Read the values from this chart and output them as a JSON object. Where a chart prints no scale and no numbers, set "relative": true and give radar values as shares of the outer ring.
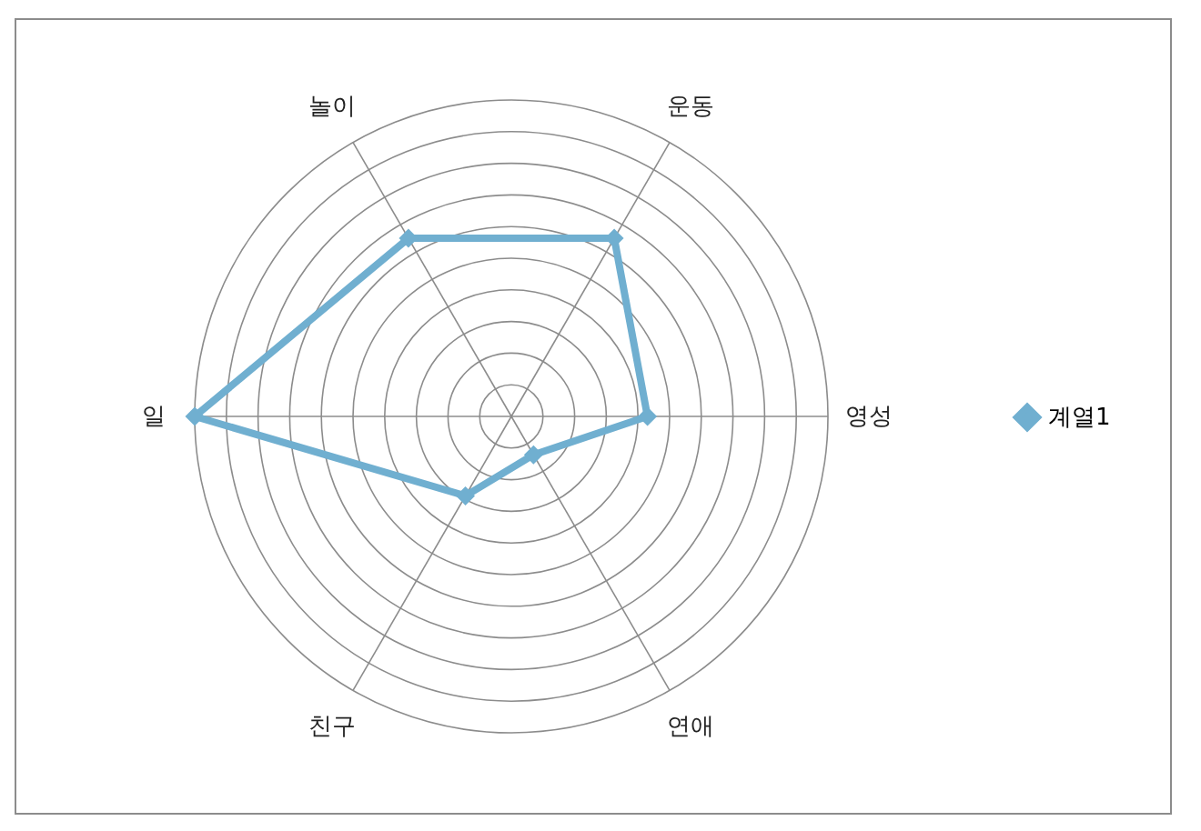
{
  "chart_data": {
    "type": "radar",
    "relative": true,
    "grid": true,
    "legend": "right",
    "marker": "diamond",
    "categories": [
      "운동",
      "영성",
      "연애",
      "친구",
      "일",
      "놀이"
    ],
    "series": [
      {
        "name": "계열1",
        "color": "#70afd0",
        "values": [
          0.65,
          0.43,
          0.14,
          0.29,
          1.0,
          0.65
        ]
      }
    ]
  }
}
